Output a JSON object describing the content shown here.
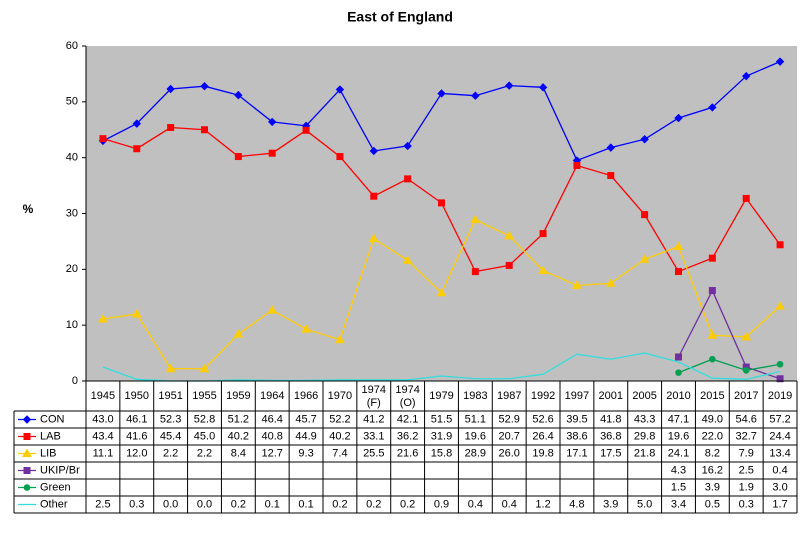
{
  "chart_data": {
    "type": "line",
    "title": "East of England",
    "y_label": "%",
    "categories": [
      "1945",
      "1950",
      "1951",
      "1955",
      "1959",
      "1964",
      "1966",
      "1970",
      "1974 (F)",
      "1974 (O)",
      "1979",
      "1983",
      "1987",
      "1992",
      "1997",
      "2001",
      "2005",
      "2010",
      "2015",
      "2017",
      "2019"
    ],
    "ylim": [
      0,
      60
    ],
    "yticks": [
      0,
      10,
      20,
      30,
      40,
      50,
      60
    ],
    "grid": false,
    "data_table": true,
    "series": [
      {
        "name": "CON",
        "color": "#0000ff",
        "marker": "diamond",
        "values": [
          43.0,
          46.1,
          52.3,
          52.8,
          51.2,
          46.4,
          45.7,
          52.2,
          41.2,
          42.1,
          51.5,
          51.1,
          52.9,
          52.6,
          39.5,
          41.8,
          43.3,
          47.1,
          49.0,
          54.6,
          57.2
        ],
        "value_labels": [
          "43.0",
          "46.1",
          "52.3",
          "52.8",
          "51.2",
          "46.4",
          "45.7",
          "52.2",
          "41.2",
          "42.1",
          "51.5",
          "51.1",
          "52.9",
          "52.6",
          "39.5",
          "41.8",
          "43.3",
          "47.1",
          "49.0",
          "54.6",
          "57.2"
        ]
      },
      {
        "name": "LAB",
        "color": "#ff0000",
        "marker": "square",
        "values": [
          43.4,
          41.6,
          45.4,
          45.0,
          40.2,
          40.8,
          44.9,
          40.2,
          33.1,
          36.2,
          31.9,
          19.6,
          20.7,
          26.4,
          38.6,
          36.8,
          29.8,
          19.6,
          22.0,
          32.7,
          24.4
        ],
        "value_labels": [
          "43.4",
          "41.6",
          "45.4",
          "45.0",
          "40.2",
          "40.8",
          "44.9",
          "40.2",
          "33.1",
          "36.2",
          "31.9",
          "19.6",
          "20.7",
          "26.4",
          "38.6",
          "36.8",
          "29.8",
          "19.6",
          "22.0",
          "32.7",
          "24.4"
        ]
      },
      {
        "name": "LIB",
        "color": "#ffcc00",
        "marker": "triangle",
        "values": [
          11.1,
          12.0,
          2.2,
          2.2,
          8.4,
          12.7,
          9.3,
          7.4,
          25.5,
          21.6,
          15.8,
          28.9,
          26.0,
          19.8,
          17.1,
          17.5,
          21.8,
          24.1,
          8.2,
          7.9,
          13.4
        ],
        "value_labels": [
          "11.1",
          "12.0",
          "2.2",
          "2.2",
          "8.4",
          "12.7",
          "9.3",
          "7.4",
          "25.5",
          "21.6",
          "15.8",
          "28.9",
          "26.0",
          "19.8",
          "17.1",
          "17.5",
          "21.8",
          "24.1",
          "8.2",
          "7.9",
          "13.4"
        ]
      },
      {
        "name": "UKIP/Br",
        "color": "#7030a0",
        "marker": "square",
        "values": [
          null,
          null,
          null,
          null,
          null,
          null,
          null,
          null,
          null,
          null,
          null,
          null,
          null,
          null,
          null,
          null,
          null,
          4.3,
          16.2,
          2.5,
          0.4
        ],
        "value_labels": [
          null,
          null,
          null,
          null,
          null,
          null,
          null,
          null,
          null,
          null,
          null,
          null,
          null,
          null,
          null,
          null,
          null,
          "4.3",
          "16.2",
          "2.5",
          "0.4"
        ]
      },
      {
        "name": "Green",
        "color": "#00a050",
        "marker": "circle",
        "values": [
          null,
          null,
          null,
          null,
          null,
          null,
          null,
          null,
          null,
          null,
          null,
          null,
          null,
          null,
          null,
          null,
          null,
          1.5,
          3.9,
          1.9,
          3.0
        ],
        "value_labels": [
          null,
          null,
          null,
          null,
          null,
          null,
          null,
          null,
          null,
          null,
          null,
          null,
          null,
          null,
          null,
          null,
          null,
          "1.5",
          "3.9",
          "1.9",
          "3.0"
        ]
      },
      {
        "name": "Other",
        "color": "#33dddd",
        "marker": "none",
        "values": [
          2.5,
          0.3,
          0.0,
          0.0,
          0.2,
          0.1,
          0.1,
          0.2,
          0.2,
          0.2,
          0.9,
          0.4,
          0.4,
          1.2,
          4.8,
          3.9,
          5.0,
          3.4,
          0.5,
          0.3,
          1.7
        ],
        "value_labels": [
          "2.5",
          "0.3",
          "0.0",
          "0.0",
          "0.2",
          "0.1",
          "0.1",
          "0.2",
          "0.2",
          "0.2",
          "0.9",
          "0.4",
          "0.4",
          "1.2",
          "4.8",
          "3.9",
          "5.0",
          "3.4",
          "0.5",
          "0.3",
          "1.7"
        ]
      }
    ]
  }
}
